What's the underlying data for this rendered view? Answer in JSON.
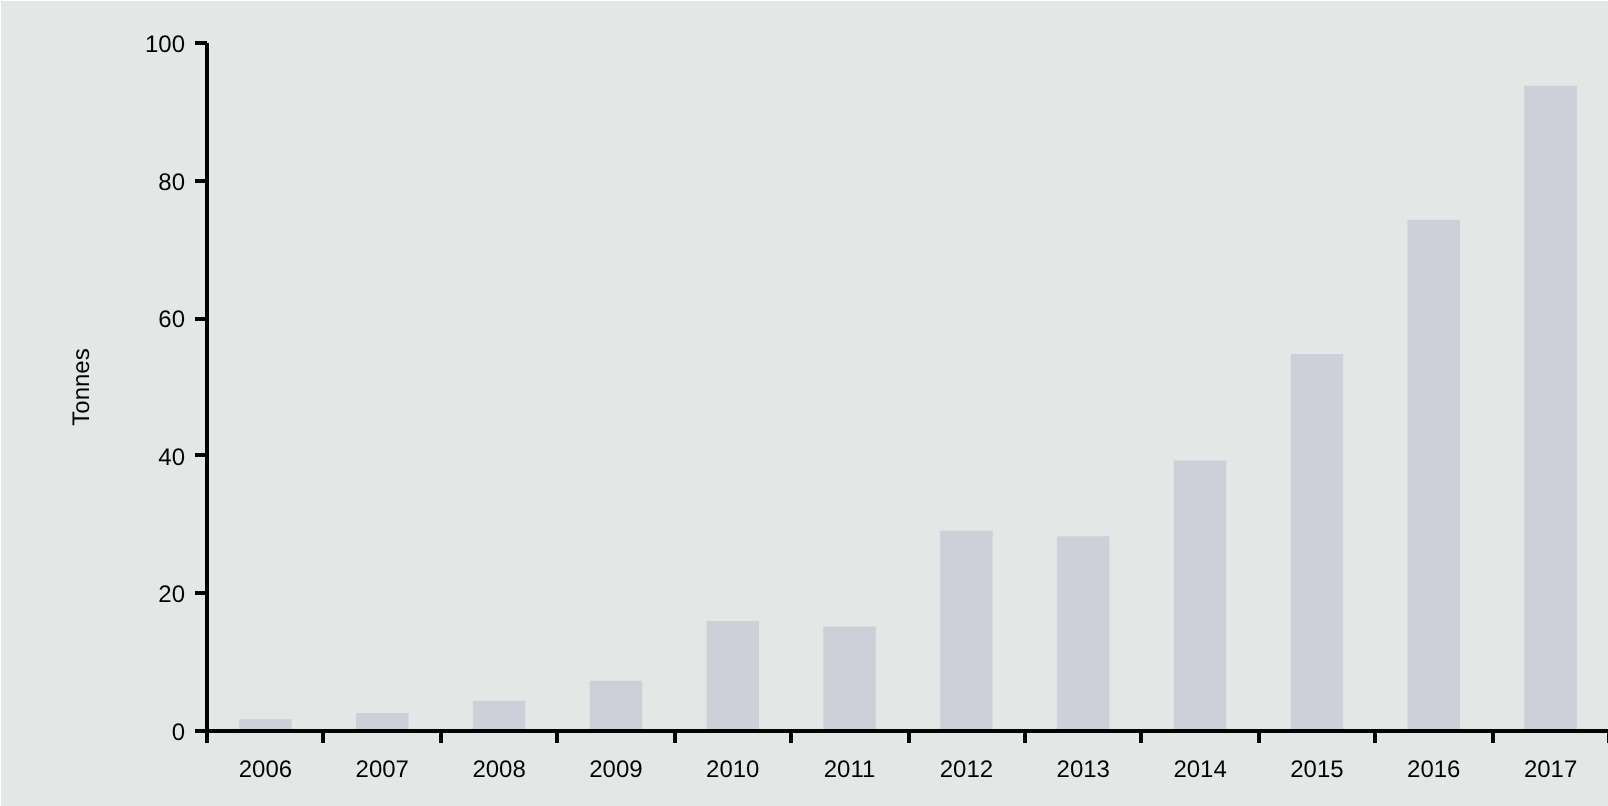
{
  "chart_data": {
    "type": "bar",
    "ylabel": "Tonnes",
    "categories": [
      "2006",
      "2007",
      "2008",
      "2009",
      "2010",
      "2011",
      "2012",
      "2013",
      "2014",
      "2015",
      "2016",
      "2017"
    ],
    "values": [
      1.7,
      2.6,
      4.4,
      7.3,
      16.0,
      15.2,
      29.1,
      28.3,
      39.3,
      54.8,
      74.3,
      93.8
    ],
    "color": "#cdd0d8",
    "ylim": [
      0,
      100
    ],
    "yticks": [
      0,
      20,
      40,
      60,
      80,
      100
    ]
  }
}
